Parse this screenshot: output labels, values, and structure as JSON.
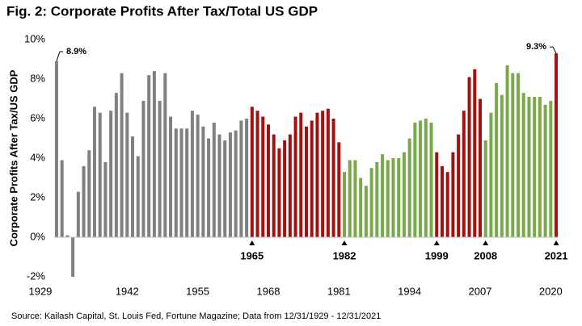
{
  "chart_data": {
    "type": "bar",
    "title": "Fig. 2: Corporate Profits After Tax/Total US GDP",
    "ylabel": "Corporate Profits After Tax/US GDP",
    "source": "Source: Kailash Capital, St. Louis Fed, Fortune Magazine; Data from 12/31/1929 - 12/31/2021",
    "x": [
      1929,
      1930,
      1931,
      1932,
      1933,
      1934,
      1935,
      1936,
      1937,
      1938,
      1939,
      1940,
      1941,
      1942,
      1943,
      1944,
      1945,
      1946,
      1947,
      1948,
      1949,
      1950,
      1951,
      1952,
      1953,
      1954,
      1955,
      1956,
      1957,
      1958,
      1959,
      1960,
      1961,
      1962,
      1963,
      1964,
      1965,
      1966,
      1967,
      1968,
      1969,
      1970,
      1971,
      1972,
      1973,
      1974,
      1975,
      1976,
      1977,
      1978,
      1979,
      1980,
      1981,
      1982,
      1983,
      1984,
      1985,
      1986,
      1987,
      1988,
      1989,
      1990,
      1991,
      1992,
      1993,
      1994,
      1995,
      1996,
      1997,
      1998,
      1999,
      2000,
      2001,
      2002,
      2003,
      2004,
      2005,
      2006,
      2007,
      2008,
      2009,
      2010,
      2011,
      2012,
      2013,
      2014,
      2015,
      2016,
      2017,
      2018,
      2019,
      2020,
      2021
    ],
    "values": [
      8.9,
      3.9,
      0.1,
      -2.0,
      2.3,
      3.6,
      4.4,
      6.6,
      6.3,
      3.8,
      6.4,
      7.3,
      8.3,
      6.3,
      5.1,
      4.1,
      6.9,
      8.2,
      8.4,
      6.9,
      8.3,
      6.1,
      5.5,
      5.5,
      5.5,
      6.4,
      6.2,
      5.6,
      5.0,
      5.8,
      5.2,
      4.9,
      5.3,
      5.4,
      5.9,
      6.0,
      6.6,
      6.4,
      6.1,
      5.7,
      5.2,
      4.5,
      4.9,
      5.2,
      6.1,
      6.3,
      5.6,
      5.9,
      6.3,
      6.4,
      6.5,
      6.0,
      4.8,
      3.3,
      3.9,
      3.9,
      3.0,
      2.6,
      3.5,
      3.8,
      4.2,
      3.9,
      4.0,
      4.0,
      4.3,
      5.0,
      5.8,
      5.9,
      6.0,
      5.8,
      4.3,
      3.6,
      3.3,
      4.3,
      5.2,
      6.4,
      8.1,
      8.5,
      7.0,
      4.9,
      6.3,
      7.8,
      7.2,
      8.7,
      8.3,
      8.3,
      7.3,
      7.1,
      7.1,
      7.1,
      6.7,
      6.9,
      9.3
    ],
    "value_labels": [
      "8.9%",
      null,
      null,
      null,
      null,
      null,
      null,
      null,
      null,
      null,
      null,
      null,
      null,
      null,
      null,
      null,
      null,
      null,
      null,
      null,
      null,
      null,
      null,
      null,
      null,
      null,
      null,
      null,
      null,
      null,
      null,
      null,
      null,
      null,
      null,
      null,
      null,
      null,
      null,
      null,
      null,
      null,
      null,
      null,
      null,
      null,
      null,
      null,
      null,
      null,
      null,
      null,
      null,
      null,
      null,
      null,
      null,
      null,
      null,
      null,
      null,
      null,
      null,
      null,
      null,
      null,
      null,
      null,
      null,
      null,
      null,
      null,
      null,
      null,
      null,
      null,
      null,
      null,
      null,
      null,
      null,
      null,
      null,
      null,
      null,
      null,
      null,
      null,
      null,
      null,
      null,
      null,
      "9.3%"
    ],
    "colors": [
      "#808080",
      "#808080",
      "#808080",
      "#808080",
      "#808080",
      "#808080",
      "#808080",
      "#808080",
      "#808080",
      "#808080",
      "#808080",
      "#808080",
      "#808080",
      "#808080",
      "#808080",
      "#808080",
      "#808080",
      "#808080",
      "#808080",
      "#808080",
      "#808080",
      "#808080",
      "#808080",
      "#808080",
      "#808080",
      "#808080",
      "#808080",
      "#808080",
      "#808080",
      "#808080",
      "#808080",
      "#808080",
      "#808080",
      "#808080",
      "#808080",
      "#808080",
      "#a50f0f",
      "#a50f0f",
      "#a50f0f",
      "#a50f0f",
      "#a50f0f",
      "#a50f0f",
      "#a50f0f",
      "#a50f0f",
      "#a50f0f",
      "#a50f0f",
      "#a50f0f",
      "#a50f0f",
      "#a50f0f",
      "#a50f0f",
      "#a50f0f",
      "#a50f0f",
      "#a50f0f",
      "#78a94a",
      "#78a94a",
      "#78a94a",
      "#78a94a",
      "#78a94a",
      "#78a94a",
      "#78a94a",
      "#78a94a",
      "#78a94a",
      "#78a94a",
      "#78a94a",
      "#78a94a",
      "#78a94a",
      "#78a94a",
      "#78a94a",
      "#78a94a",
      "#78a94a",
      "#a50f0f",
      "#a50f0f",
      "#a50f0f",
      "#a50f0f",
      "#a50f0f",
      "#a50f0f",
      "#a50f0f",
      "#a50f0f",
      "#a50f0f",
      "#78a94a",
      "#78a94a",
      "#78a94a",
      "#78a94a",
      "#78a94a",
      "#78a94a",
      "#78a94a",
      "#78a94a",
      "#78a94a",
      "#78a94a",
      "#78a94a",
      "#78a94a",
      "#78a94a",
      "#a50f0f"
    ],
    "xlim": [
      1928.5,
      2021.5
    ],
    "xticks": [
      1929,
      1942,
      1955,
      1968,
      1981,
      1994,
      2007,
      2020
    ],
    "markers": [
      1965,
      1982,
      1999,
      2008,
      2021
    ],
    "ylim": [
      -2,
      10
    ],
    "yticks": [
      {
        "value": -2,
        "label": "-2%"
      },
      {
        "value": 0,
        "label": "0%"
      },
      {
        "value": 2,
        "label": "2%"
      },
      {
        "value": 4,
        "label": "4%"
      },
      {
        "value": 6,
        "label": "6%"
      },
      {
        "value": 8,
        "label": "8%"
      },
      {
        "value": 10,
        "label": "10%"
      }
    ],
    "grid": false
  }
}
